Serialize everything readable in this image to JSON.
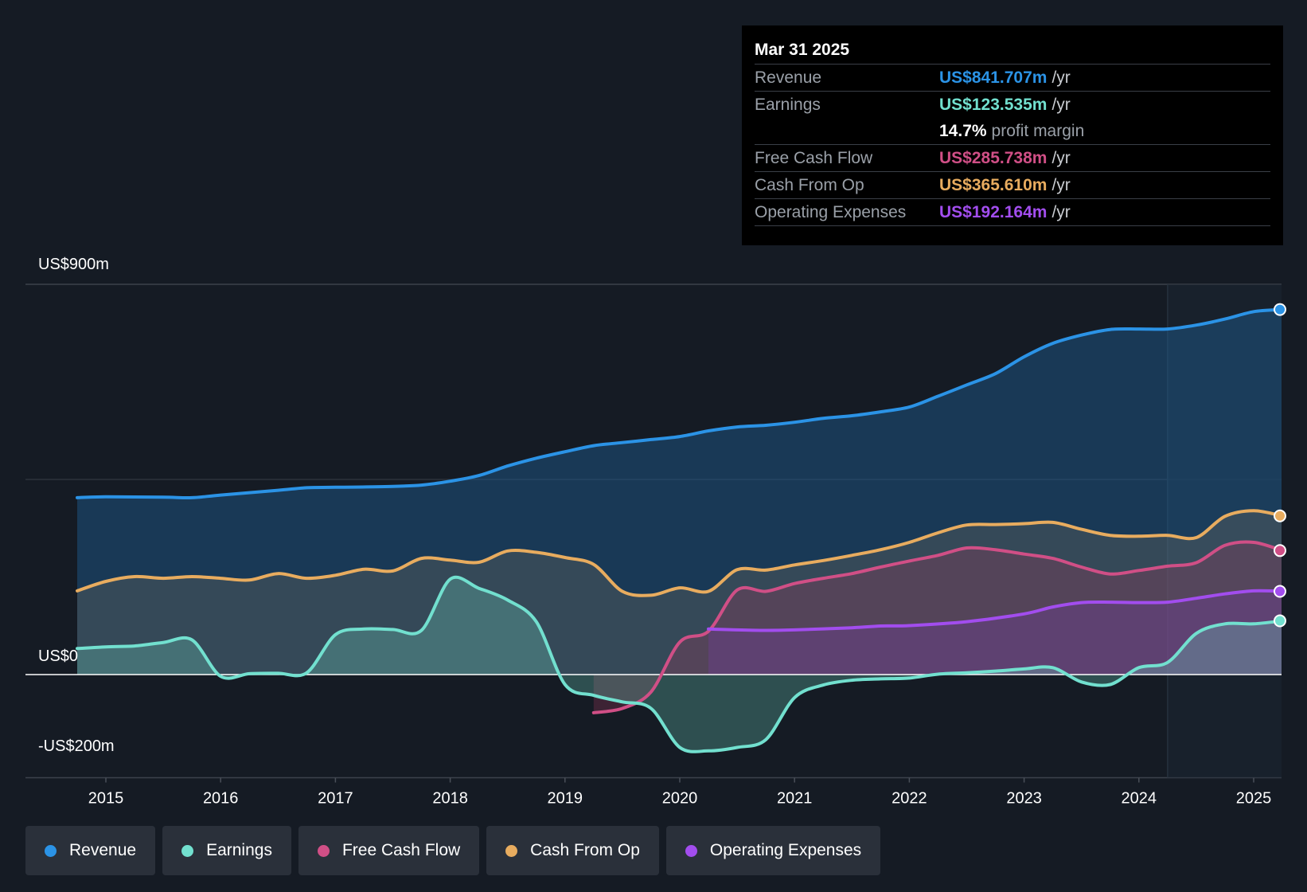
{
  "tooltip": {
    "date": "Mar 31 2025",
    "revenue_label": "Revenue",
    "revenue_value": "US$841.707m",
    "earnings_label": "Earnings",
    "earnings_value": "US$123.535m",
    "margin_value": "14.7%",
    "margin_text": "profit margin",
    "fcf_label": "Free Cash Flow",
    "fcf_value": "US$285.738m",
    "cfo_label": "Cash From Op",
    "cfo_value": "US$365.610m",
    "opex_label": "Operating Expenses",
    "opex_value": "US$192.164m",
    "unit": "/yr"
  },
  "colors": {
    "revenue": "#2b93e6",
    "earnings": "#72e0cf",
    "fcf": "#d04f86",
    "cfo": "#e8ac5f",
    "opex": "#a24dee"
  },
  "chart_data": {
    "type": "area",
    "title": "",
    "xlabel": "",
    "ylabel": "",
    "ylim": [
      -225,
      900
    ],
    "x_ticks": [
      "2015",
      "2016",
      "2017",
      "2018",
      "2019",
      "2020",
      "2021",
      "2022",
      "2023",
      "2024",
      "2025"
    ],
    "y_ticks": [
      {
        "value": 900,
        "label": "US$900m"
      },
      {
        "value": 0,
        "label": "US$0"
      },
      {
        "value": -200,
        "label": "-US$200m"
      }
    ],
    "forecast_start": 2024.25,
    "series": [
      {
        "name": "Revenue",
        "key": "revenue",
        "points": [
          [
            2014.75,
            408
          ],
          [
            2015.0,
            410
          ],
          [
            2015.5,
            409
          ],
          [
            2015.75,
            408
          ],
          [
            2016.0,
            414
          ],
          [
            2016.5,
            425
          ],
          [
            2016.75,
            431
          ],
          [
            2017.0,
            432
          ],
          [
            2017.5,
            434
          ],
          [
            2017.75,
            437
          ],
          [
            2018.0,
            446
          ],
          [
            2018.25,
            459
          ],
          [
            2018.5,
            481
          ],
          [
            2018.75,
            499
          ],
          [
            2019.0,
            514
          ],
          [
            2019.25,
            528
          ],
          [
            2019.5,
            535
          ],
          [
            2019.75,
            542
          ],
          [
            2020.0,
            549
          ],
          [
            2020.25,
            562
          ],
          [
            2020.5,
            571
          ],
          [
            2020.75,
            575
          ],
          [
            2021.0,
            582
          ],
          [
            2021.25,
            591
          ],
          [
            2021.5,
            597
          ],
          [
            2021.75,
            606
          ],
          [
            2022.0,
            617
          ],
          [
            2022.25,
            642
          ],
          [
            2022.5,
            668
          ],
          [
            2022.75,
            694
          ],
          [
            2023.0,
            733
          ],
          [
            2023.25,
            764
          ],
          [
            2023.5,
            783
          ],
          [
            2023.75,
            796
          ],
          [
            2024.0,
            797
          ],
          [
            2024.25,
            797
          ],
          [
            2024.5,
            806
          ],
          [
            2024.75,
            820
          ],
          [
            2025.0,
            837
          ],
          [
            2025.25,
            842
          ]
        ]
      },
      {
        "name": "Cash From Op",
        "key": "cfo",
        "points": [
          [
            2014.75,
            193
          ],
          [
            2015.0,
            215
          ],
          [
            2015.25,
            226
          ],
          [
            2015.5,
            222
          ],
          [
            2015.75,
            226
          ],
          [
            2016.0,
            222
          ],
          [
            2016.25,
            218
          ],
          [
            2016.5,
            233
          ],
          [
            2016.75,
            222
          ],
          [
            2017.0,
            229
          ],
          [
            2017.25,
            243
          ],
          [
            2017.5,
            239
          ],
          [
            2017.75,
            268
          ],
          [
            2018.0,
            264
          ],
          [
            2018.25,
            259
          ],
          [
            2018.5,
            285
          ],
          [
            2018.75,
            282
          ],
          [
            2019.0,
            270
          ],
          [
            2019.25,
            254
          ],
          [
            2019.5,
            192
          ],
          [
            2019.75,
            183
          ],
          [
            2020.0,
            200
          ],
          [
            2020.25,
            192
          ],
          [
            2020.5,
            242
          ],
          [
            2020.75,
            241
          ],
          [
            2021.0,
            253
          ],
          [
            2021.25,
            263
          ],
          [
            2021.5,
            275
          ],
          [
            2021.75,
            288
          ],
          [
            2022.0,
            305
          ],
          [
            2022.25,
            327
          ],
          [
            2022.5,
            345
          ],
          [
            2022.75,
            346
          ],
          [
            2023.0,
            348
          ],
          [
            2023.25,
            351
          ],
          [
            2023.5,
            335
          ],
          [
            2023.75,
            321
          ],
          [
            2024.0,
            319
          ],
          [
            2024.25,
            321
          ],
          [
            2024.5,
            316
          ],
          [
            2024.75,
            365
          ],
          [
            2025.0,
            378
          ],
          [
            2025.25,
            366
          ]
        ]
      },
      {
        "name": "Free Cash Flow",
        "key": "fcf",
        "points": [
          [
            2019.25,
            -88
          ],
          [
            2019.5,
            -78
          ],
          [
            2019.75,
            -40
          ],
          [
            2020.0,
            75
          ],
          [
            2020.25,
            100
          ],
          [
            2020.5,
            195
          ],
          [
            2020.75,
            192
          ],
          [
            2021.0,
            210
          ],
          [
            2021.25,
            222
          ],
          [
            2021.5,
            233
          ],
          [
            2021.75,
            248
          ],
          [
            2022.0,
            262
          ],
          [
            2022.25,
            275
          ],
          [
            2022.5,
            292
          ],
          [
            2022.75,
            288
          ],
          [
            2023.0,
            278
          ],
          [
            2023.25,
            268
          ],
          [
            2023.5,
            248
          ],
          [
            2023.75,
            232
          ],
          [
            2024.0,
            240
          ],
          [
            2024.25,
            250
          ],
          [
            2024.5,
            258
          ],
          [
            2024.75,
            298
          ],
          [
            2025.0,
            305
          ],
          [
            2025.25,
            286
          ]
        ]
      },
      {
        "name": "Operating Expenses",
        "key": "opex",
        "points": [
          [
            2020.25,
            105
          ],
          [
            2020.5,
            103
          ],
          [
            2020.75,
            102
          ],
          [
            2021.0,
            103
          ],
          [
            2021.5,
            108
          ],
          [
            2021.75,
            112
          ],
          [
            2022.0,
            113
          ],
          [
            2022.5,
            122
          ],
          [
            2023.0,
            140
          ],
          [
            2023.25,
            156
          ],
          [
            2023.5,
            166
          ],
          [
            2023.75,
            167
          ],
          [
            2024.0,
            166
          ],
          [
            2024.25,
            167
          ],
          [
            2024.5,
            176
          ],
          [
            2024.75,
            186
          ],
          [
            2025.0,
            193
          ],
          [
            2025.25,
            192
          ]
        ]
      },
      {
        "name": "Earnings",
        "key": "earnings",
        "points": [
          [
            2014.75,
            60
          ],
          [
            2015.0,
            64
          ],
          [
            2015.25,
            66
          ],
          [
            2015.5,
            74
          ],
          [
            2015.75,
            80
          ],
          [
            2016.0,
            -4
          ],
          [
            2016.25,
            2
          ],
          [
            2016.5,
            3
          ],
          [
            2016.75,
            4
          ],
          [
            2017.0,
            92
          ],
          [
            2017.25,
            105
          ],
          [
            2017.5,
            104
          ],
          [
            2017.75,
            102
          ],
          [
            2018.0,
            220
          ],
          [
            2018.25,
            199
          ],
          [
            2018.5,
            172
          ],
          [
            2018.75,
            122
          ],
          [
            2019.0,
            -23
          ],
          [
            2019.25,
            -48
          ],
          [
            2019.5,
            -63
          ],
          [
            2019.75,
            -78
          ],
          [
            2020.0,
            -168
          ],
          [
            2020.25,
            -176
          ],
          [
            2020.5,
            -168
          ],
          [
            2020.75,
            -150
          ],
          [
            2021.0,
            -53
          ],
          [
            2021.25,
            -24
          ],
          [
            2021.5,
            -13
          ],
          [
            2021.75,
            -10
          ],
          [
            2022.0,
            -8
          ],
          [
            2022.25,
            1
          ],
          [
            2022.5,
            4
          ],
          [
            2022.75,
            8
          ],
          [
            2023.0,
            13
          ],
          [
            2023.25,
            16
          ],
          [
            2023.5,
            -17
          ],
          [
            2023.75,
            -23
          ],
          [
            2024.0,
            16
          ],
          [
            2024.25,
            28
          ],
          [
            2024.5,
            95
          ],
          [
            2024.75,
            117
          ],
          [
            2025.0,
            117
          ],
          [
            2025.25,
            124
          ]
        ]
      }
    ]
  },
  "legend": {
    "items": [
      {
        "label": "Revenue",
        "key": "revenue"
      },
      {
        "label": "Earnings",
        "key": "earnings"
      },
      {
        "label": "Free Cash Flow",
        "key": "fcf"
      },
      {
        "label": "Cash From Op",
        "key": "cfo"
      },
      {
        "label": "Operating Expenses",
        "key": "opex"
      }
    ]
  }
}
